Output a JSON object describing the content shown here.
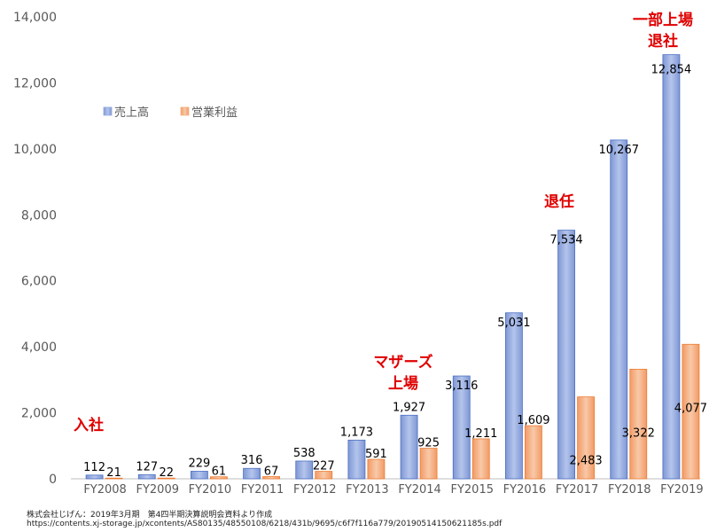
{
  "chart_data": {
    "type": "bar",
    "categories": [
      "FY2008",
      "FY2009",
      "FY2010",
      "FY2011",
      "FY2012",
      "FY2013",
      "FY2014",
      "FY2015",
      "FY2016",
      "FY2017",
      "FY2018",
      "FY2019"
    ],
    "series": [
      {
        "name": "売上高",
        "values": [
          112,
          127,
          229,
          316,
          538,
          1173,
          1927,
          3116,
          5031,
          7534,
          10267,
          12854
        ],
        "labels": [
          "112",
          "127",
          "229",
          "316",
          "538",
          "1,173",
          "1,927",
          "3,116",
          "5,031",
          "7,534",
          "10,267",
          "12,854"
        ],
        "color": "#8faadc"
      },
      {
        "name": "営業利益",
        "values": [
          21,
          22,
          61,
          67,
          227,
          591,
          925,
          1211,
          1609,
          2483,
          3322,
          4077
        ],
        "labels": [
          "21",
          "22",
          "61",
          "67",
          "227",
          "591",
          "925",
          "1,211",
          "1,609",
          "2,483",
          "3,322",
          "4,077"
        ],
        "color": "#f4b183"
      }
    ],
    "ylim": [
      0,
      14000
    ],
    "yticks": [
      0,
      2000,
      4000,
      6000,
      8000,
      10000,
      12000,
      14000
    ],
    "ytick_labels": [
      "0",
      "2,000",
      "4,000",
      "6,000",
      "8,000",
      "10,000",
      "12,000",
      "14,000"
    ],
    "legend_position": "top-left",
    "grid": false,
    "annotations": [
      {
        "text": "入社",
        "category": "FY2008"
      },
      {
        "text": "マザーズ\n上場",
        "category": "FY2014"
      },
      {
        "text": "退任",
        "category": "FY2017"
      },
      {
        "text": "一部上場\n退社",
        "category": "FY2019"
      }
    ],
    "annotation_color": "#e00000"
  },
  "source": {
    "line1": "株式会社じげん：2019年3月期　第4四半期決算説明会資料より作成",
    "line2": "https://contents.xj-storage.jp/xcontents/AS80135/48550108/6218/431b/9695/c6f7f116a779/20190514150621185s.pdf"
  }
}
